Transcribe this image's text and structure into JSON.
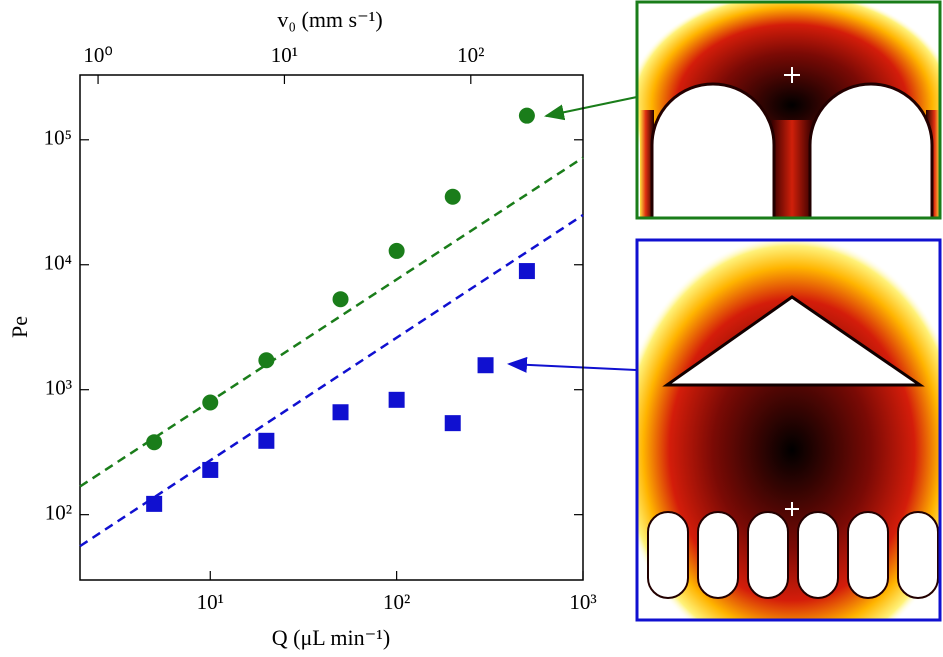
{
  "chart_data": {
    "type": "scatter",
    "x_label": "Q (μL min⁻¹)",
    "y_label": "Pe",
    "x2_label": "v₀ (mm s⁻¹)",
    "xscale": "log",
    "yscale": "log",
    "xlim": [
      2,
      1000
    ],
    "ylim": [
      30,
      330000
    ],
    "x2lim": [
      0.8,
      400
    ],
    "xticks": [
      {
        "value": 10,
        "label": "10¹"
      },
      {
        "value": 100,
        "label": "10²"
      },
      {
        "value": 1000,
        "label": "10³"
      }
    ],
    "yticks": [
      {
        "value": 100,
        "label": "10²"
      },
      {
        "value": 1000,
        "label": "10³"
      },
      {
        "value": 10000,
        "label": "10⁴"
      },
      {
        "value": 100000,
        "label": "10⁵"
      }
    ],
    "x2ticks": [
      {
        "value": 1,
        "label": "10⁰"
      },
      {
        "value": 10,
        "label": "10¹"
      },
      {
        "value": 100,
        "label": "10²"
      }
    ],
    "series": [
      {
        "color": "#1a7d1a",
        "marker": "circle",
        "x": [
          5,
          10,
          20,
          50,
          100,
          200,
          500
        ],
        "values": [
          380,
          790,
          1720,
          5300,
          12900,
          35000,
          156000
        ]
      },
      {
        "color": "#1010d0",
        "marker": "square",
        "x": [
          5,
          10,
          20,
          50,
          100,
          200,
          300,
          500
        ],
        "values": [
          122,
          228,
          390,
          660,
          830,
          540,
          1570,
          8900
        ]
      },
      {
        "color": "#1a7d1a",
        "linestyle": "dashed",
        "x": [
          2,
          1000
        ],
        "values": [
          168,
          72000
        ]
      },
      {
        "color": "#1010d0",
        "linestyle": "dashed",
        "x": [
          2,
          1000
        ],
        "values": [
          56,
          25000
        ]
      }
    ]
  }
}
